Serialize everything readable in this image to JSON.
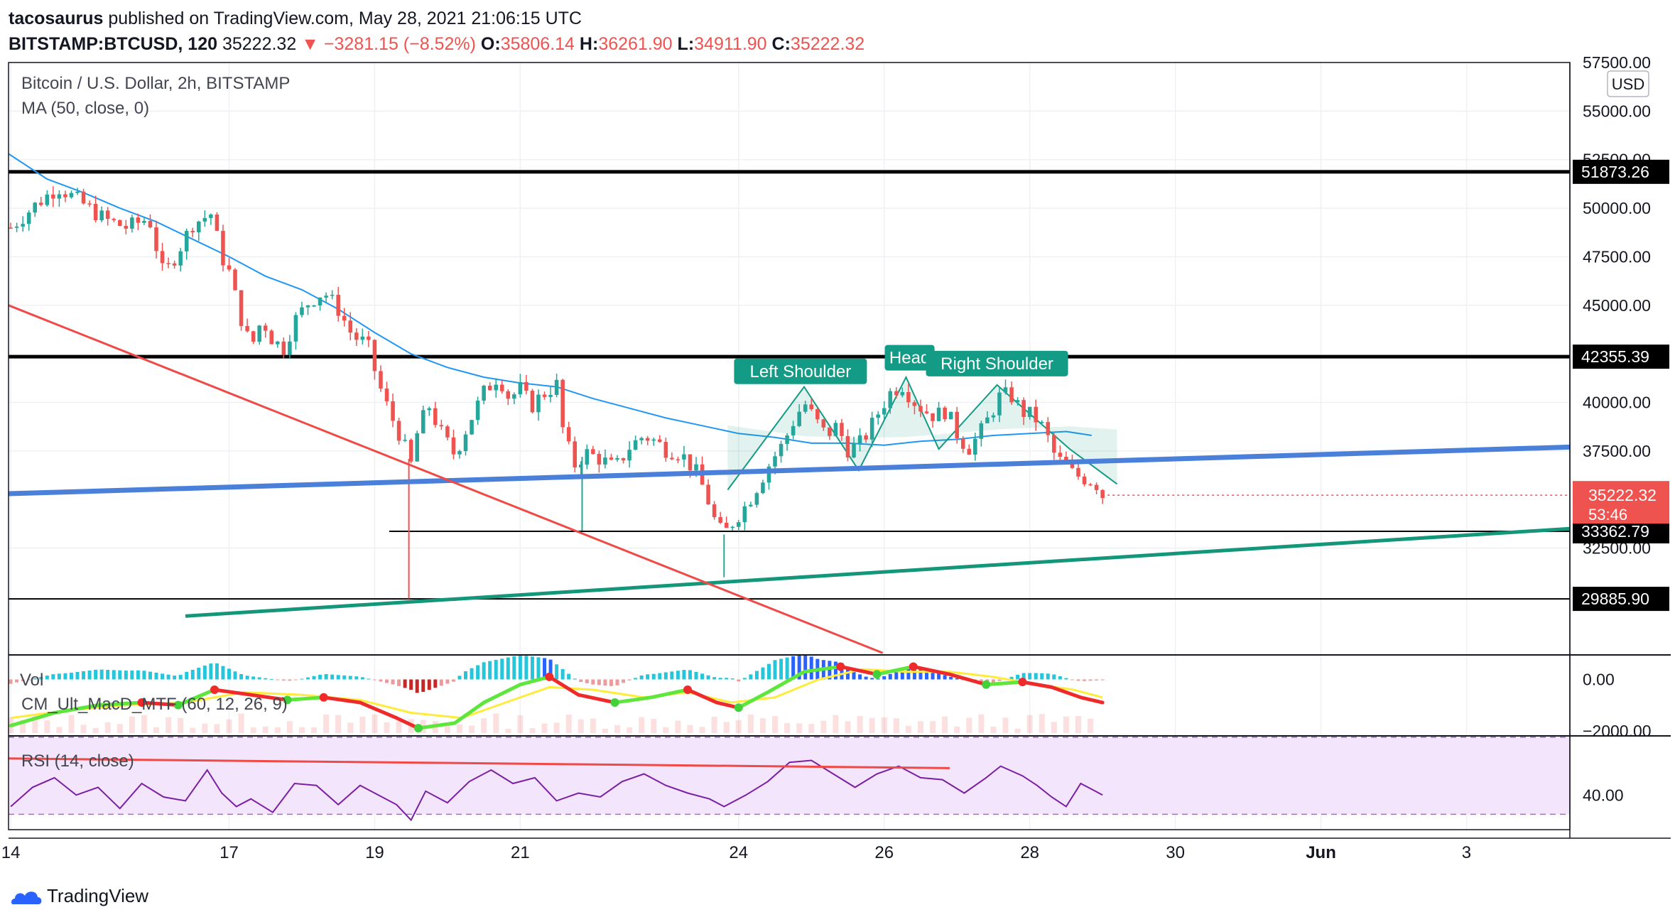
{
  "header": {
    "author": "tacosaurus",
    "published": "published on TradingView.com, May 28, 2021 21:06:15 UTC",
    "symbol": "BITSTAMP:BTCUSD, 120",
    "last": "35222.32",
    "change": "▼ −3281.15 (−8.52%)",
    "o_label": "O:",
    "o": "35806.14",
    "h_label": "H:",
    "h": "36261.90",
    "l_label": "L:",
    "l": "34911.90",
    "c_label": "C:",
    "c": "35222.32"
  },
  "pane_titles": {
    "main": "Bitcoin / U.S. Dollar, 2h, BITSTAMP",
    "ma": "MA (50, close, 0)",
    "vol": "Vol",
    "macd": "CM_Ult_MacD_MTF (60, 12, 26, 9)",
    "rsi": "RSI (14, close)"
  },
  "currency_button": "USD",
  "footer_brand": "TradingView",
  "colors": {
    "up": "#26a69a",
    "down": "#ef5350",
    "ma": "#2196f3",
    "blue_trend": "#4a80d9",
    "green_trend": "#14967a",
    "red_trend": "#ef4a47",
    "pattern": "#149b85",
    "rsi_band": "#f3e5fb",
    "rsi_line": "#7b1fa2"
  },
  "chart_data": {
    "type": "candlestick",
    "title": "Bitcoin / U.S. Dollar, 2h, BITSTAMP",
    "ylim": [
      27000,
      57500
    ],
    "price_ticks": [
      "57500.00",
      "55000.00",
      "52500.00",
      "50000.00",
      "47500.00",
      "45000.00",
      "40000.00",
      "37500.00",
      "32500.00"
    ],
    "price_tick_values": [
      57500,
      55000,
      52500,
      50000,
      47500,
      45000,
      40000,
      37500,
      32500
    ],
    "x_ticks": [
      "14",
      "17",
      "19",
      "21",
      "24",
      "26",
      "28",
      "30",
      "Jun",
      "3"
    ],
    "x_tick_days": [
      14,
      17,
      19,
      21,
      24,
      26,
      28,
      30,
      32,
      34
    ],
    "x_range_days": [
      13.97,
      35.42
    ],
    "last_price": "35222.32",
    "countdown": "53:46",
    "horizontal_levels": [
      {
        "price": 51873.26,
        "label": "51873.26",
        "weight": "thick"
      },
      {
        "price": 42355.39,
        "label": "42355.39",
        "weight": "thick"
      },
      {
        "price": 33362.79,
        "label": "33362.79",
        "weight": "thin",
        "from_day": 19.2
      },
      {
        "price": 29885.9,
        "label": "29885.90",
        "weight": "thin"
      }
    ],
    "close_path": [
      [
        14.0,
        49000
      ],
      [
        14.35,
        50200
      ],
      [
        14.65,
        51100
      ],
      [
        15.0,
        50200
      ],
      [
        15.3,
        49400
      ],
      [
        15.6,
        49000
      ],
      [
        15.9,
        49500
      ],
      [
        16.1,
        46500
      ],
      [
        16.3,
        47800
      ],
      [
        16.5,
        49200
      ],
      [
        16.75,
        49700
      ],
      [
        16.9,
        47500
      ],
      [
        17.0,
        46700
      ],
      [
        17.15,
        44500
      ],
      [
        17.3,
        42800
      ],
      [
        17.45,
        44300
      ],
      [
        17.6,
        43200
      ],
      [
        17.75,
        42800
      ],
      [
        17.9,
        44200
      ],
      [
        18.1,
        45200
      ],
      [
        18.3,
        45700
      ],
      [
        18.5,
        44800
      ],
      [
        18.7,
        43400
      ],
      [
        18.9,
        43000
      ],
      [
        19.05,
        41000
      ],
      [
        19.2,
        39500
      ],
      [
        19.35,
        38300
      ],
      [
        19.5,
        36800
      ],
      [
        19.6,
        38700
      ],
      [
        19.75,
        39800
      ],
      [
        19.9,
        38500
      ],
      [
        20.1,
        37300
      ],
      [
        20.3,
        39000
      ],
      [
        20.5,
        40500
      ],
      [
        20.7,
        41400
      ],
      [
        20.85,
        40200
      ],
      [
        21.0,
        40700
      ],
      [
        21.15,
        39800
      ],
      [
        21.3,
        40400
      ],
      [
        21.5,
        40900
      ],
      [
        21.6,
        38200
      ],
      [
        21.75,
        36800
      ],
      [
        21.9,
        37400
      ],
      [
        22.1,
        37100
      ],
      [
        22.3,
        36600
      ],
      [
        22.5,
        37700
      ],
      [
        22.7,
        38300
      ],
      [
        22.85,
        38000
      ],
      [
        23.0,
        37600
      ],
      [
        23.2,
        37400
      ],
      [
        23.4,
        36500
      ],
      [
        23.55,
        35300
      ],
      [
        23.7,
        33600
      ],
      [
        23.8,
        33200
      ],
      [
        23.95,
        34000
      ],
      [
        24.1,
        34700
      ],
      [
        24.2,
        35300
      ],
      [
        24.3,
        36000
      ],
      [
        24.45,
        37000
      ],
      [
        24.6,
        37800
      ],
      [
        24.75,
        39000
      ],
      [
        24.9,
        40000
      ],
      [
        25.05,
        39100
      ],
      [
        25.2,
        38300
      ],
      [
        25.35,
        38800
      ],
      [
        25.5,
        37600
      ],
      [
        25.65,
        37800
      ],
      [
        25.8,
        38600
      ],
      [
        25.95,
        39700
      ],
      [
        26.1,
        40600
      ],
      [
        26.25,
        40900
      ],
      [
        26.4,
        40100
      ],
      [
        26.55,
        39600
      ],
      [
        26.7,
        39300
      ],
      [
        26.85,
        39600
      ],
      [
        27.0,
        38400
      ],
      [
        27.15,
        37600
      ],
      [
        27.3,
        38300
      ],
      [
        27.45,
        39300
      ],
      [
        27.6,
        40400
      ],
      [
        27.75,
        40300
      ],
      [
        27.9,
        39500
      ],
      [
        28.05,
        39300
      ],
      [
        28.2,
        38600
      ],
      [
        28.35,
        37200
      ],
      [
        28.5,
        36700
      ],
      [
        28.6,
        36300
      ],
      [
        28.75,
        36100
      ],
      [
        28.9,
        35900
      ],
      [
        29.0,
        35222
      ]
    ],
    "ma50": [
      [
        13.97,
        52800
      ],
      [
        14.5,
        51500
      ],
      [
        15.0,
        50800
      ],
      [
        15.5,
        50000
      ],
      [
        16.0,
        49300
      ],
      [
        16.5,
        48400
      ],
      [
        17.0,
        47500
      ],
      [
        17.5,
        46500
      ],
      [
        18.0,
        45800
      ],
      [
        18.5,
        44800
      ],
      [
        19.0,
        43600
      ],
      [
        19.5,
        42500
      ],
      [
        20.0,
        41800
      ],
      [
        20.5,
        41300
      ],
      [
        21.0,
        41000
      ],
      [
        21.5,
        40800
      ],
      [
        22.0,
        40200
      ],
      [
        22.5,
        39700
      ],
      [
        23.0,
        39200
      ],
      [
        23.5,
        38800
      ],
      [
        24.0,
        38400
      ],
      [
        24.5,
        38200
      ],
      [
        25.0,
        37900
      ],
      [
        25.5,
        37900
      ],
      [
        26.0,
        37800
      ],
      [
        26.5,
        38000
      ],
      [
        27.0,
        38100
      ],
      [
        27.5,
        38300
      ],
      [
        28.0,
        38400
      ],
      [
        28.5,
        38500
      ],
      [
        28.85,
        38300
      ]
    ],
    "trendlines": [
      {
        "name": "blue-trend",
        "points": [
          [
            13.97,
            35300
          ],
          [
            35.42,
            37700
          ]
        ]
      },
      {
        "name": "green-trend",
        "points": [
          [
            16.4,
            29000
          ],
          [
            35.42,
            33500
          ]
        ]
      },
      {
        "name": "red-trend",
        "points": [
          [
            13.97,
            45000
          ],
          [
            25.98,
            27100
          ]
        ]
      }
    ],
    "pattern_labels": [
      {
        "text": "Left Shoulder",
        "day": 24.85,
        "price": 41600
      },
      {
        "text": "Head",
        "day": 26.35,
        "price": 42300
      },
      {
        "text": "Right Shoulder",
        "day": 27.55,
        "price": 42000
      }
    ],
    "pattern_outline": [
      [
        23.85,
        35500
      ],
      [
        24.9,
        40800
      ],
      [
        25.65,
        36500
      ],
      [
        26.3,
        41300
      ],
      [
        26.75,
        37600
      ],
      [
        27.55,
        40900
      ],
      [
        28.55,
        37600
      ],
      [
        29.2,
        35800
      ]
    ],
    "macd_ticks": [
      "0.00",
      "−2000.00"
    ],
    "macd_tick_values": [
      0,
      -2000
    ],
    "macd_ylim": [
      -2200,
      900
    ],
    "macd_fast": [
      [
        14.0,
        -1800
      ],
      [
        14.6,
        -1300
      ],
      [
        15.2,
        -1000
      ],
      [
        15.8,
        -900
      ],
      [
        16.3,
        -1000
      ],
      [
        16.8,
        -400
      ],
      [
        17.3,
        -600
      ],
      [
        17.8,
        -800
      ],
      [
        18.3,
        -700
      ],
      [
        18.8,
        -900
      ],
      [
        19.3,
        -1500
      ],
      [
        19.6,
        -1900
      ],
      [
        20.1,
        -1700
      ],
      [
        20.5,
        -900
      ],
      [
        21.0,
        -200
      ],
      [
        21.4,
        100
      ],
      [
        21.8,
        -600
      ],
      [
        22.3,
        -900
      ],
      [
        22.8,
        -700
      ],
      [
        23.3,
        -400
      ],
      [
        23.7,
        -900
      ],
      [
        24.0,
        -1100
      ],
      [
        24.4,
        -500
      ],
      [
        24.9,
        300
      ],
      [
        25.4,
        500
      ],
      [
        25.9,
        200
      ],
      [
        26.4,
        500
      ],
      [
        26.9,
        200
      ],
      [
        27.4,
        -200
      ],
      [
        27.9,
        -100
      ],
      [
        28.3,
        -300
      ],
      [
        28.7,
        -700
      ],
      [
        29.0,
        -900
      ]
    ],
    "macd_signal": [
      [
        14.0,
        -1500
      ],
      [
        14.8,
        -1200
      ],
      [
        15.6,
        -1000
      ],
      [
        16.4,
        -900
      ],
      [
        17.2,
        -500
      ],
      [
        18.0,
        -600
      ],
      [
        18.8,
        -800
      ],
      [
        19.5,
        -1300
      ],
      [
        20.2,
        -1500
      ],
      [
        20.8,
        -900
      ],
      [
        21.4,
        -300
      ],
      [
        22.0,
        -400
      ],
      [
        22.7,
        -700
      ],
      [
        23.3,
        -500
      ],
      [
        23.9,
        -900
      ],
      [
        24.5,
        -700
      ],
      [
        25.1,
        0
      ],
      [
        25.7,
        400
      ],
      [
        26.3,
        300
      ],
      [
        26.9,
        300
      ],
      [
        27.5,
        100
      ],
      [
        28.1,
        -200
      ],
      [
        28.6,
        -400
      ],
      [
        29.0,
        -700
      ]
    ],
    "rsi_ticks": [
      "40.00"
    ],
    "rsi_tick_values": [
      40
    ],
    "rsi_ylim": [
      22,
      70
    ],
    "rsi_band": [
      30,
      70
    ],
    "rsi": [
      [
        14.0,
        34
      ],
      [
        14.3,
        44
      ],
      [
        14.6,
        49
      ],
      [
        14.9,
        40
      ],
      [
        15.2,
        44
      ],
      [
        15.5,
        33
      ],
      [
        15.8,
        46
      ],
      [
        16.1,
        39
      ],
      [
        16.4,
        37
      ],
      [
        16.7,
        53
      ],
      [
        16.9,
        41
      ],
      [
        17.1,
        34
      ],
      [
        17.3,
        38
      ],
      [
        17.6,
        31
      ],
      [
        17.9,
        46
      ],
      [
        18.2,
        45
      ],
      [
        18.5,
        35
      ],
      [
        18.8,
        45
      ],
      [
        19.0,
        41
      ],
      [
        19.3,
        35
      ],
      [
        19.5,
        27
      ],
      [
        19.7,
        42
      ],
      [
        20.0,
        36
      ],
      [
        20.3,
        47
      ],
      [
        20.6,
        53
      ],
      [
        20.9,
        46
      ],
      [
        21.2,
        49
      ],
      [
        21.5,
        37
      ],
      [
        21.8,
        41
      ],
      [
        22.1,
        39
      ],
      [
        22.4,
        47
      ],
      [
        22.7,
        51
      ],
      [
        23.0,
        45
      ],
      [
        23.3,
        41
      ],
      [
        23.6,
        38
      ],
      [
        23.8,
        34
      ],
      [
        24.1,
        40
      ],
      [
        24.4,
        47
      ],
      [
        24.7,
        57
      ],
      [
        25.0,
        58
      ],
      [
        25.3,
        51
      ],
      [
        25.6,
        44
      ],
      [
        25.9,
        51
      ],
      [
        26.2,
        55
      ],
      [
        26.5,
        49
      ],
      [
        26.8,
        48
      ],
      [
        27.1,
        41
      ],
      [
        27.4,
        49
      ],
      [
        27.6,
        55
      ],
      [
        27.9,
        50
      ],
      [
        28.1,
        45
      ],
      [
        28.3,
        39
      ],
      [
        28.5,
        34
      ],
      [
        28.7,
        46
      ],
      [
        28.9,
        42
      ],
      [
        29.0,
        40
      ]
    ],
    "rsi_trend": [
      [
        13.97,
        59
      ],
      [
        26.9,
        54
      ]
    ]
  }
}
